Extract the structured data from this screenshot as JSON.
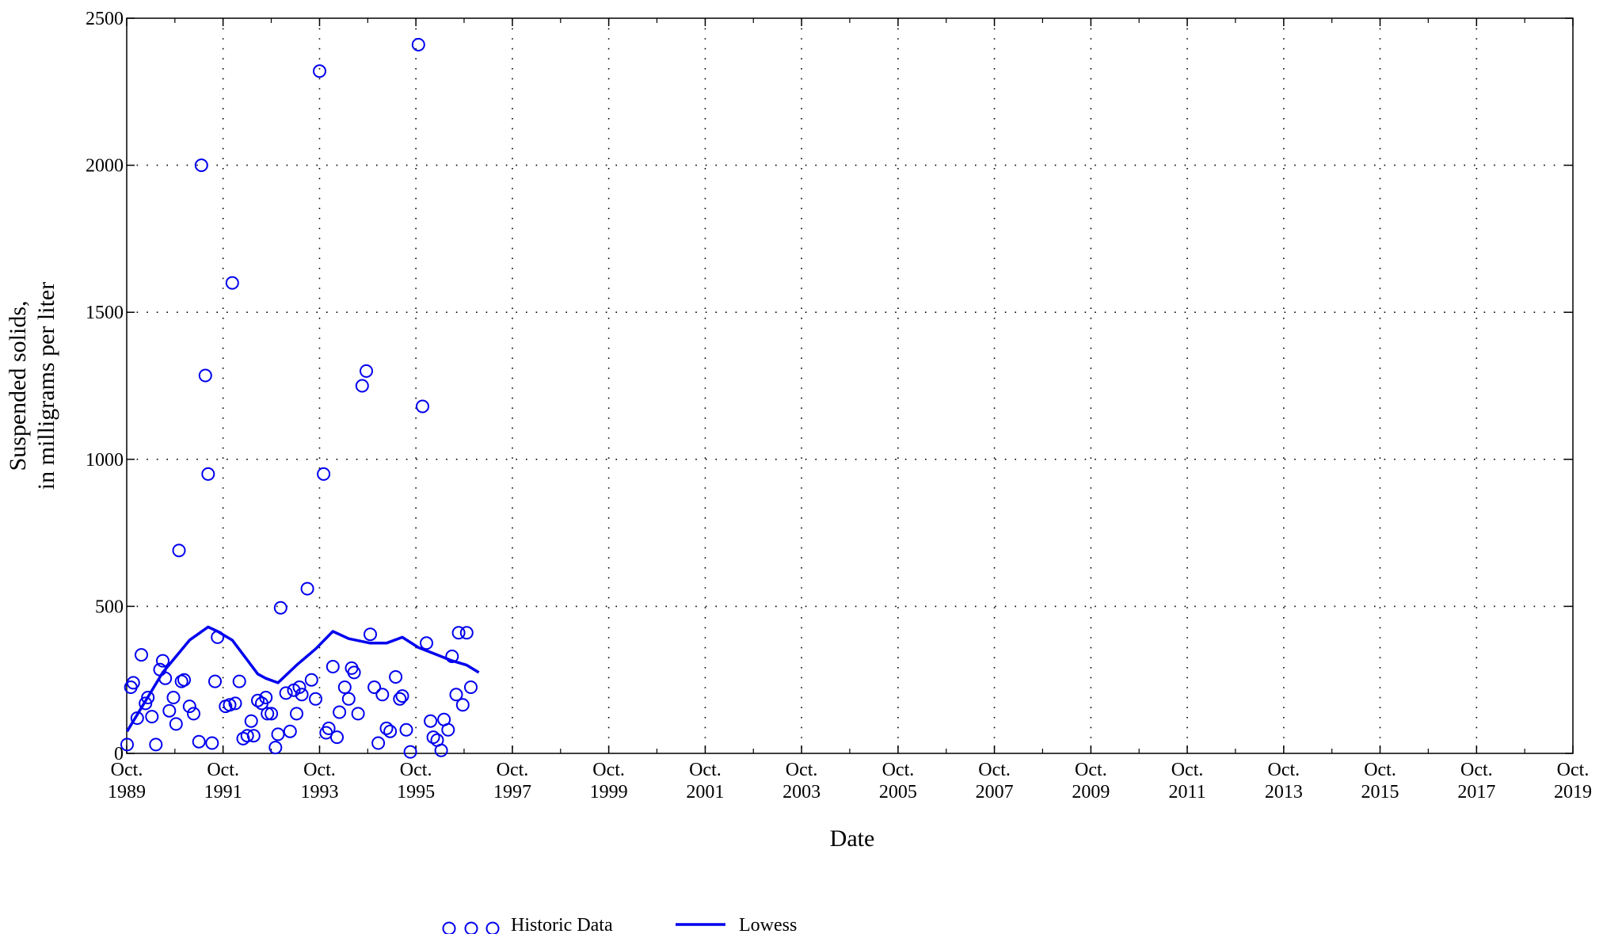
{
  "chart_data": {
    "type": "scatter",
    "xlabel": "Date",
    "ylabel": "Suspended solids,",
    "ylabel_line2": "in milligrams per liter",
    "ylim": [
      0,
      2500
    ],
    "xlim": [
      "1989-10-01",
      "2019-10-01"
    ],
    "grid": true,
    "legend_placement": "bottom-center",
    "y_ticks": [
      {
        "value": 0,
        "label": "0"
      },
      {
        "value": 500,
        "label": "500"
      },
      {
        "value": 1000,
        "label": "1000"
      },
      {
        "value": 1500,
        "label": "1500"
      },
      {
        "value": 2000,
        "label": "2000"
      },
      {
        "value": 2500,
        "label": "2500"
      }
    ],
    "x_ticks": [
      {
        "date": "1989-10-01",
        "line1": "Oct.",
        "line2": "1989"
      },
      {
        "date": "1991-10-01",
        "line1": "Oct.",
        "line2": "1991"
      },
      {
        "date": "1993-10-01",
        "line1": "Oct.",
        "line2": "1993"
      },
      {
        "date": "1995-10-01",
        "line1": "Oct.",
        "line2": "1995"
      },
      {
        "date": "1997-10-01",
        "line1": "Oct.",
        "line2": "1997"
      },
      {
        "date": "1999-10-01",
        "line1": "Oct.",
        "line2": "1999"
      },
      {
        "date": "2001-10-01",
        "line1": "Oct.",
        "line2": "2001"
      },
      {
        "date": "2003-10-01",
        "line1": "Oct.",
        "line2": "2003"
      },
      {
        "date": "2005-10-01",
        "line1": "Oct.",
        "line2": "2005"
      },
      {
        "date": "2007-10-01",
        "line1": "Oct.",
        "line2": "2007"
      },
      {
        "date": "2009-10-01",
        "line1": "Oct.",
        "line2": "2009"
      },
      {
        "date": "2011-10-01",
        "line1": "Oct.",
        "line2": "2011"
      },
      {
        "date": "2013-10-01",
        "line1": "Oct.",
        "line2": "2013"
      },
      {
        "date": "2015-10-01",
        "line1": "Oct.",
        "line2": "2015"
      },
      {
        "date": "2017-10-01",
        "line1": "Oct.",
        "line2": "2017"
      },
      {
        "date": "2019-10-01",
        "line1": "Oct.",
        "line2": "2019"
      }
    ],
    "colors": {
      "series": "#0000ee",
      "grid": "#000000",
      "axis": "#000000"
    },
    "series": [
      {
        "name": "Historic Data",
        "kind": "scatter",
        "marker": "open-circle",
        "points": [
          [
            "1989-10-04",
            30
          ],
          [
            "1989-11-01",
            225
          ],
          [
            "1989-11-20",
            240
          ],
          [
            "1989-12-20",
            120
          ],
          [
            "1990-01-20",
            335
          ],
          [
            "1990-02-20",
            170
          ],
          [
            "1990-03-10",
            190
          ],
          [
            "1990-04-10",
            125
          ],
          [
            "1990-05-10",
            30
          ],
          [
            "1990-06-10",
            285
          ],
          [
            "1990-07-01",
            315
          ],
          [
            "1990-07-20",
            255
          ],
          [
            "1990-08-20",
            145
          ],
          [
            "1990-09-20",
            190
          ],
          [
            "1990-10-10",
            100
          ],
          [
            "1990-11-01",
            690
          ],
          [
            "1990-11-20",
            245
          ],
          [
            "1990-12-10",
            250
          ],
          [
            "1991-01-20",
            160
          ],
          [
            "1991-02-20",
            135
          ],
          [
            "1991-04-01",
            40
          ],
          [
            "1991-04-20",
            2000
          ],
          [
            "1991-05-20",
            1285
          ],
          [
            "1991-06-10",
            950
          ],
          [
            "1991-07-10",
            35
          ],
          [
            "1991-08-01",
            245
          ],
          [
            "1991-08-20",
            395
          ],
          [
            "1991-10-20",
            160
          ],
          [
            "1991-11-20",
            165
          ],
          [
            "1991-12-10",
            1600
          ],
          [
            "1992-01-01",
            170
          ],
          [
            "1992-02-01",
            245
          ],
          [
            "1992-03-01",
            50
          ],
          [
            "1992-04-01",
            60
          ],
          [
            "1992-05-01",
            110
          ],
          [
            "1992-05-20",
            60
          ],
          [
            "1992-06-20",
            180
          ],
          [
            "1992-07-20",
            170
          ],
          [
            "1992-08-20",
            190
          ],
          [
            "1992-09-01",
            135
          ],
          [
            "1992-10-01",
            135
          ],
          [
            "1992-11-01",
            20
          ],
          [
            "1992-11-20",
            65
          ],
          [
            "1992-12-10",
            495
          ],
          [
            "1993-01-20",
            205
          ],
          [
            "1993-02-20",
            75
          ],
          [
            "1993-03-20",
            215
          ],
          [
            "1993-04-10",
            135
          ],
          [
            "1993-05-01",
            225
          ],
          [
            "1993-05-20",
            200
          ],
          [
            "1993-07-01",
            560
          ],
          [
            "1993-08-01",
            250
          ],
          [
            "1993-09-01",
            185
          ],
          [
            "1993-10-01",
            2320
          ],
          [
            "1993-11-01",
            950
          ],
          [
            "1993-11-20",
            70
          ],
          [
            "1993-12-10",
            85
          ],
          [
            "1994-01-10",
            295
          ],
          [
            "1994-02-10",
            55
          ],
          [
            "1994-03-01",
            140
          ],
          [
            "1994-04-10",
            225
          ],
          [
            "1994-05-10",
            185
          ],
          [
            "1994-06-01",
            290
          ],
          [
            "1994-06-20",
            275
          ],
          [
            "1994-07-20",
            135
          ],
          [
            "1994-08-20",
            1250
          ],
          [
            "1994-09-20",
            1300
          ],
          [
            "1994-10-20",
            405
          ],
          [
            "1994-11-20",
            225
          ],
          [
            "1994-12-20",
            35
          ],
          [
            "1995-01-20",
            200
          ],
          [
            "1995-02-20",
            85
          ],
          [
            "1995-03-20",
            75
          ],
          [
            "1995-05-01",
            260
          ],
          [
            "1995-06-01",
            185
          ],
          [
            "1995-06-20",
            195
          ],
          [
            "1995-07-20",
            80
          ],
          [
            "1995-08-20",
            5
          ],
          [
            "1995-10-20",
            2410
          ],
          [
            "1995-11-20",
            1180
          ],
          [
            "1995-12-20",
            375
          ],
          [
            "1996-01-20",
            110
          ],
          [
            "1996-02-10",
            55
          ],
          [
            "1996-03-10",
            45
          ],
          [
            "1996-04-10",
            10
          ],
          [
            "1996-05-01",
            115
          ],
          [
            "1996-06-01",
            80
          ],
          [
            "1996-07-01",
            330
          ],
          [
            "1996-08-01",
            200
          ],
          [
            "1996-08-20",
            410
          ],
          [
            "1996-09-20",
            165
          ],
          [
            "1996-10-20",
            410
          ],
          [
            "1996-11-20",
            225
          ]
        ]
      },
      {
        "name": "Lowess",
        "kind": "line",
        "points": [
          [
            "1989-10-04",
            75
          ],
          [
            "1990-07-01",
            275
          ],
          [
            "1991-01-20",
            385
          ],
          [
            "1991-06-10",
            430
          ],
          [
            "1991-08-20",
            415
          ],
          [
            "1991-12-10",
            385
          ],
          [
            "1992-06-20",
            270
          ],
          [
            "1992-08-20",
            255
          ],
          [
            "1992-11-20",
            240
          ],
          [
            "1993-04-10",
            300
          ],
          [
            "1993-09-01",
            355
          ],
          [
            "1994-01-10",
            415
          ],
          [
            "1994-05-10",
            390
          ],
          [
            "1994-10-20",
            375
          ],
          [
            "1995-02-20",
            375
          ],
          [
            "1995-06-20",
            395
          ],
          [
            "1995-10-20",
            360
          ],
          [
            "1996-03-10",
            335
          ],
          [
            "1996-07-01",
            315
          ],
          [
            "1996-10-20",
            300
          ],
          [
            "1997-01-20",
            275
          ]
        ]
      }
    ]
  },
  "legend": {
    "items": [
      {
        "label": "Historic Data",
        "symbol": "circles"
      },
      {
        "label": "Lowess",
        "symbol": "line"
      }
    ]
  }
}
